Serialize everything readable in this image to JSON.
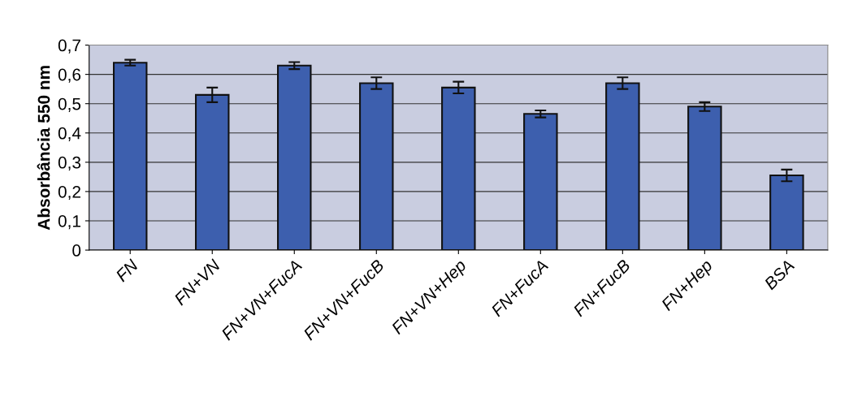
{
  "chart_data": {
    "type": "bar",
    "ylabel": "Absorbância 550 nm",
    "categories": [
      "FN",
      "FN+VN",
      "FN+VN+FucA",
      "FN+VN+FucB",
      "FN+VN+Hep",
      "FN+FucA",
      "FN+FucB",
      "FN+Hep",
      "BSA"
    ],
    "values": [
      0.64,
      0.53,
      0.63,
      0.57,
      0.555,
      0.465,
      0.57,
      0.49,
      0.255
    ],
    "errors": [
      0.01,
      0.025,
      0.012,
      0.02,
      0.02,
      0.012,
      0.02,
      0.015,
      0.02
    ],
    "color": "#3d5fae",
    "ylim": [
      0,
      0.7
    ],
    "yticks": [
      {
        "value": 0,
        "label": "0"
      },
      {
        "value": 0.1,
        "label": "0,1"
      },
      {
        "value": 0.2,
        "label": "0,2"
      },
      {
        "value": 0.3,
        "label": "0,3"
      },
      {
        "value": 0.4,
        "label": "0,4"
      },
      {
        "value": 0.5,
        "label": "0,5"
      },
      {
        "value": 0.6,
        "label": "0,6"
      },
      {
        "value": 0.7,
        "label": "0,7"
      }
    ],
    "grid": "y",
    "legend": false
  }
}
